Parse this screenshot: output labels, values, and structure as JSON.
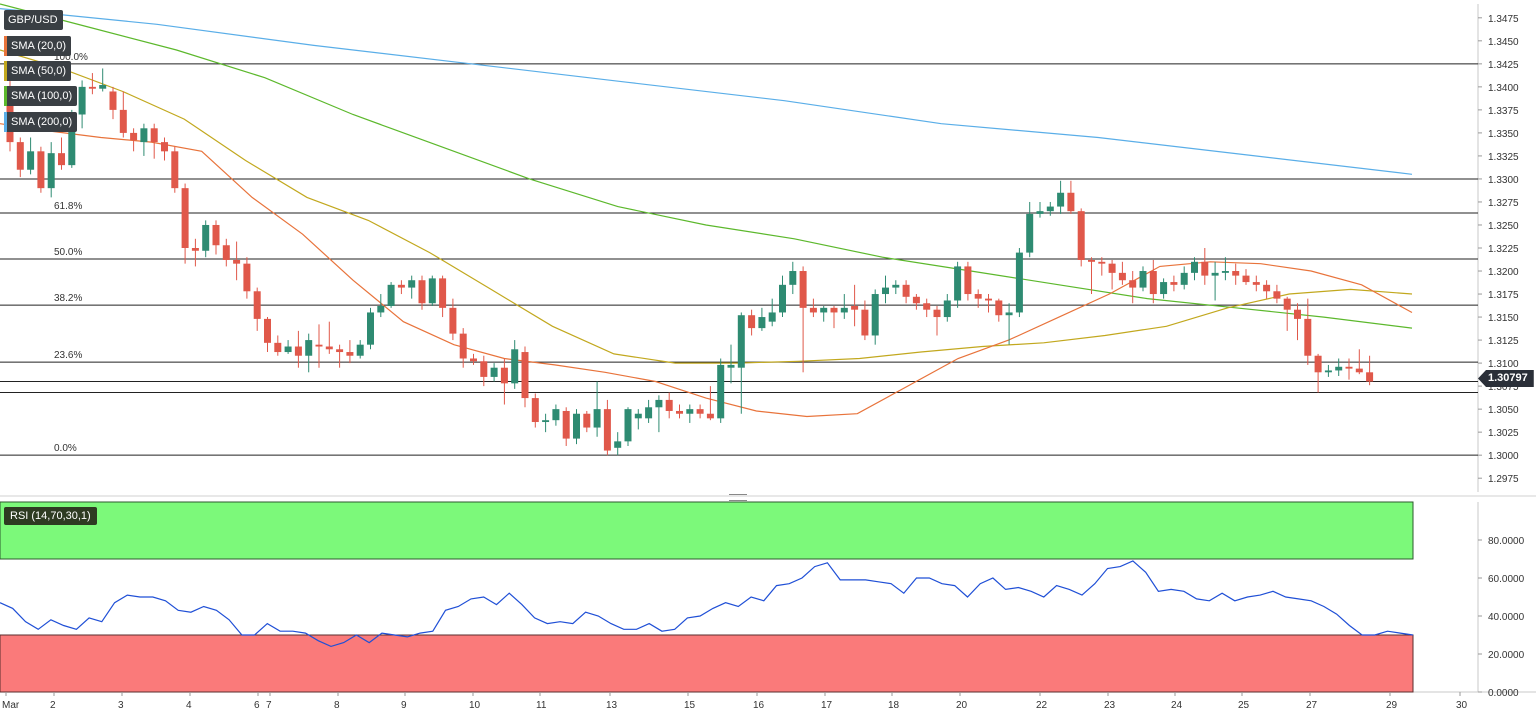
{
  "symbol": "GBP/USD",
  "current_price": "1.30797",
  "legends": [
    {
      "label": "SMA (20,0)",
      "color": "#e8733b"
    },
    {
      "label": "SMA (50,0)",
      "color": "#c2a81e"
    },
    {
      "label": "SMA (100,0)",
      "color": "#5cb82c"
    },
    {
      "label": "SMA (200,0)",
      "color": "#5aaee8"
    }
  ],
  "rsi_label": "RSI (14,70,30,1)",
  "colors": {
    "bull": "#2e8b72",
    "bear": "#e0584a",
    "rsi_line": "#1f4fd6",
    "overbought": "#7cf97a",
    "oversold": "#fa7a7a"
  },
  "chart_data": [
    {
      "type": "candlestick",
      "title": "GBP/USD",
      "ylim": [
        1.296,
        1.349
      ],
      "y_ticks": [
        "1.2975",
        "1.3000",
        "1.3025",
        "1.3050",
        "1.3075",
        "1.3100",
        "1.3125",
        "1.3150",
        "1.3175",
        "1.3200",
        "1.3225",
        "1.3250",
        "1.3275",
        "1.3300",
        "1.3325",
        "1.3350",
        "1.3375",
        "1.3400",
        "1.3425",
        "1.3450",
        "1.3475"
      ],
      "x_labels": [
        "Mar",
        "2",
        "3",
        "4",
        "6",
        "7",
        "8",
        "9",
        "10",
        "11",
        "13",
        "15",
        "16",
        "17",
        "18",
        "20",
        "22",
        "23",
        "24",
        "25",
        "27",
        "29",
        "30"
      ],
      "fibonacci": [
        {
          "label": "100.0%",
          "level": 1.3425
        },
        {
          "label": "61.8%",
          "level": 1.3263
        },
        {
          "label": "50.0%",
          "level": 1.3213
        },
        {
          "label": "38.2%",
          "level": 1.3163
        },
        {
          "label": "23.6%",
          "level": 1.3101
        },
        {
          "label": "0.0%",
          "level": 1.3
        }
      ],
      "horizontal_lines": [
        1.33,
        1.308,
        1.3068
      ],
      "candles": [
        {
          "o": 1.3385,
          "h": 1.342,
          "l": 1.333,
          "c": 1.334
        },
        {
          "o": 1.334,
          "h": 1.3345,
          "l": 1.3302,
          "c": 1.331
        },
        {
          "o": 1.331,
          "h": 1.3345,
          "l": 1.3305,
          "c": 1.333
        },
        {
          "o": 1.333,
          "h": 1.3335,
          "l": 1.3285,
          "c": 1.329
        },
        {
          "o": 1.329,
          "h": 1.334,
          "l": 1.328,
          "c": 1.3328
        },
        {
          "o": 1.3328,
          "h": 1.3345,
          "l": 1.331,
          "c": 1.3315
        },
        {
          "o": 1.3315,
          "h": 1.3375,
          "l": 1.3312,
          "c": 1.337
        },
        {
          "o": 1.337,
          "h": 1.3407,
          "l": 1.3355,
          "c": 1.34
        },
        {
          "o": 1.34,
          "h": 1.3415,
          "l": 1.3392,
          "c": 1.3398
        },
        {
          "o": 1.3398,
          "h": 1.342,
          "l": 1.3395,
          "c": 1.3402
        },
        {
          "o": 1.3395,
          "h": 1.34,
          "l": 1.3365,
          "c": 1.3375
        },
        {
          "o": 1.3375,
          "h": 1.3395,
          "l": 1.3345,
          "c": 1.335
        },
        {
          "o": 1.335,
          "h": 1.3355,
          "l": 1.333,
          "c": 1.3342
        },
        {
          "o": 1.334,
          "h": 1.336,
          "l": 1.3325,
          "c": 1.3355
        },
        {
          "o": 1.3355,
          "h": 1.336,
          "l": 1.3322,
          "c": 1.334
        },
        {
          "o": 1.334,
          "h": 1.3345,
          "l": 1.332,
          "c": 1.333
        },
        {
          "o": 1.333,
          "h": 1.3335,
          "l": 1.3285,
          "c": 1.329
        },
        {
          "o": 1.329,
          "h": 1.3295,
          "l": 1.3208,
          "c": 1.3225
        },
        {
          "o": 1.3225,
          "h": 1.3235,
          "l": 1.3205,
          "c": 1.3222
        },
        {
          "o": 1.3222,
          "h": 1.3255,
          "l": 1.3215,
          "c": 1.325
        },
        {
          "o": 1.325,
          "h": 1.3255,
          "l": 1.3218,
          "c": 1.3228
        },
        {
          "o": 1.3228,
          "h": 1.3235,
          "l": 1.3205,
          "c": 1.3212
        },
        {
          "o": 1.3212,
          "h": 1.3232,
          "l": 1.319,
          "c": 1.3208
        },
        {
          "o": 1.3208,
          "h": 1.3215,
          "l": 1.317,
          "c": 1.3178
        },
        {
          "o": 1.3178,
          "h": 1.3182,
          "l": 1.3135,
          "c": 1.3148
        },
        {
          "o": 1.3148,
          "h": 1.315,
          "l": 1.3112,
          "c": 1.3122
        },
        {
          "o": 1.3122,
          "h": 1.313,
          "l": 1.3108,
          "c": 1.3112
        },
        {
          "o": 1.3112,
          "h": 1.3125,
          "l": 1.311,
          "c": 1.3118
        },
        {
          "o": 1.3118,
          "h": 1.3135,
          "l": 1.3095,
          "c": 1.3108
        },
        {
          "o": 1.3108,
          "h": 1.3132,
          "l": 1.309,
          "c": 1.3125
        },
        {
          "o": 1.312,
          "h": 1.3142,
          "l": 1.3095,
          "c": 1.3118
        },
        {
          "o": 1.3118,
          "h": 1.3145,
          "l": 1.311,
          "c": 1.3115
        },
        {
          "o": 1.3115,
          "h": 1.312,
          "l": 1.3095,
          "c": 1.3112
        },
        {
          "o": 1.3112,
          "h": 1.3125,
          "l": 1.31,
          "c": 1.3108
        },
        {
          "o": 1.3108,
          "h": 1.3125,
          "l": 1.3105,
          "c": 1.312
        },
        {
          "o": 1.312,
          "h": 1.316,
          "l": 1.3115,
          "c": 1.3155
        },
        {
          "o": 1.3155,
          "h": 1.3175,
          "l": 1.315,
          "c": 1.3162
        },
        {
          "o": 1.3162,
          "h": 1.3188,
          "l": 1.316,
          "c": 1.3185
        },
        {
          "o": 1.3185,
          "h": 1.319,
          "l": 1.3175,
          "c": 1.3182
        },
        {
          "o": 1.3182,
          "h": 1.3195,
          "l": 1.317,
          "c": 1.319
        },
        {
          "o": 1.319,
          "h": 1.3195,
          "l": 1.3158,
          "c": 1.3165
        },
        {
          "o": 1.3165,
          "h": 1.3195,
          "l": 1.3162,
          "c": 1.3192
        },
        {
          "o": 1.3192,
          "h": 1.3195,
          "l": 1.315,
          "c": 1.316
        },
        {
          "o": 1.316,
          "h": 1.317,
          "l": 1.3125,
          "c": 1.3132
        },
        {
          "o": 1.3132,
          "h": 1.3138,
          "l": 1.3095,
          "c": 1.3105
        },
        {
          "o": 1.3105,
          "h": 1.311,
          "l": 1.3098,
          "c": 1.3102
        },
        {
          "o": 1.3102,
          "h": 1.3108,
          "l": 1.3075,
          "c": 1.3085
        },
        {
          "o": 1.3085,
          "h": 1.31,
          "l": 1.308,
          "c": 1.3095
        },
        {
          "o": 1.3095,
          "h": 1.3105,
          "l": 1.3055,
          "c": 1.3078
        },
        {
          "o": 1.3078,
          "h": 1.3125,
          "l": 1.3072,
          "c": 1.3115
        },
        {
          "o": 1.3112,
          "h": 1.3118,
          "l": 1.3052,
          "c": 1.3062
        },
        {
          "o": 1.3062,
          "h": 1.3067,
          "l": 1.303,
          "c": 1.3036
        },
        {
          "o": 1.3036,
          "h": 1.3045,
          "l": 1.3025,
          "c": 1.3038
        },
        {
          "o": 1.3038,
          "h": 1.3055,
          "l": 1.3032,
          "c": 1.305
        },
        {
          "o": 1.3048,
          "h": 1.3052,
          "l": 1.301,
          "c": 1.3018
        },
        {
          "o": 1.3018,
          "h": 1.305,
          "l": 1.3012,
          "c": 1.3045
        },
        {
          "o": 1.3045,
          "h": 1.3048,
          "l": 1.3025,
          "c": 1.303
        },
        {
          "o": 1.303,
          "h": 1.308,
          "l": 1.302,
          "c": 1.305
        },
        {
          "o": 1.305,
          "h": 1.306,
          "l": 1.3,
          "c": 1.3005
        },
        {
          "o": 1.3008,
          "h": 1.3025,
          "l": 1.3,
          "c": 1.3015
        },
        {
          "o": 1.3015,
          "h": 1.3052,
          "l": 1.301,
          "c": 1.305
        },
        {
          "o": 1.304,
          "h": 1.305,
          "l": 1.3028,
          "c": 1.3045
        },
        {
          "o": 1.304,
          "h": 1.306,
          "l": 1.3035,
          "c": 1.3052
        },
        {
          "o": 1.3052,
          "h": 1.3065,
          "l": 1.3025,
          "c": 1.306
        },
        {
          "o": 1.306,
          "h": 1.3068,
          "l": 1.304,
          "c": 1.3048
        },
        {
          "o": 1.3048,
          "h": 1.3055,
          "l": 1.304,
          "c": 1.3045
        },
        {
          "o": 1.3045,
          "h": 1.3055,
          "l": 1.3035,
          "c": 1.305
        },
        {
          "o": 1.305,
          "h": 1.3055,
          "l": 1.304,
          "c": 1.3045
        },
        {
          "o": 1.3045,
          "h": 1.3075,
          "l": 1.3038,
          "c": 1.304
        },
        {
          "o": 1.304,
          "h": 1.3105,
          "l": 1.3035,
          "c": 1.3098
        },
        {
          "o": 1.3095,
          "h": 1.312,
          "l": 1.3078,
          "c": 1.3098
        },
        {
          "o": 1.3095,
          "h": 1.3155,
          "l": 1.3045,
          "c": 1.3152
        },
        {
          "o": 1.3152,
          "h": 1.3158,
          "l": 1.313,
          "c": 1.3138
        },
        {
          "o": 1.3138,
          "h": 1.316,
          "l": 1.3135,
          "c": 1.315
        },
        {
          "o": 1.3145,
          "h": 1.317,
          "l": 1.314,
          "c": 1.3155
        },
        {
          "o": 1.3155,
          "h": 1.3195,
          "l": 1.315,
          "c": 1.3185
        },
        {
          "o": 1.3185,
          "h": 1.321,
          "l": 1.3175,
          "c": 1.32
        },
        {
          "o": 1.32,
          "h": 1.3205,
          "l": 1.309,
          "c": 1.316
        },
        {
          "o": 1.316,
          "h": 1.317,
          "l": 1.315,
          "c": 1.3155
        },
        {
          "o": 1.3155,
          "h": 1.3162,
          "l": 1.3145,
          "c": 1.316
        },
        {
          "o": 1.316,
          "h": 1.3162,
          "l": 1.3138,
          "c": 1.3155
        },
        {
          "o": 1.3155,
          "h": 1.3175,
          "l": 1.3148,
          "c": 1.316
        },
        {
          "o": 1.3162,
          "h": 1.3185,
          "l": 1.314,
          "c": 1.3158
        },
        {
          "o": 1.3158,
          "h": 1.3168,
          "l": 1.3125,
          "c": 1.313
        },
        {
          "o": 1.313,
          "h": 1.318,
          "l": 1.312,
          "c": 1.3175
        },
        {
          "o": 1.3175,
          "h": 1.3195,
          "l": 1.3165,
          "c": 1.3182
        },
        {
          "o": 1.3182,
          "h": 1.319,
          "l": 1.3175,
          "c": 1.3185
        },
        {
          "o": 1.3185,
          "h": 1.319,
          "l": 1.3165,
          "c": 1.3172
        },
        {
          "o": 1.3172,
          "h": 1.3175,
          "l": 1.3158,
          "c": 1.3165
        },
        {
          "o": 1.3165,
          "h": 1.317,
          "l": 1.315,
          "c": 1.3158
        },
        {
          "o": 1.3158,
          "h": 1.3162,
          "l": 1.313,
          "c": 1.315
        },
        {
          "o": 1.315,
          "h": 1.3175,
          "l": 1.3145,
          "c": 1.3168
        },
        {
          "o": 1.3168,
          "h": 1.321,
          "l": 1.316,
          "c": 1.3205
        },
        {
          "o": 1.3205,
          "h": 1.321,
          "l": 1.3168,
          "c": 1.3175
        },
        {
          "o": 1.3175,
          "h": 1.318,
          "l": 1.316,
          "c": 1.317
        },
        {
          "o": 1.317,
          "h": 1.3175,
          "l": 1.3155,
          "c": 1.3168
        },
        {
          "o": 1.3168,
          "h": 1.317,
          "l": 1.3145,
          "c": 1.3152
        },
        {
          "o": 1.3152,
          "h": 1.3165,
          "l": 1.312,
          "c": 1.3155
        },
        {
          "o": 1.3155,
          "h": 1.3225,
          "l": 1.315,
          "c": 1.322
        },
        {
          "o": 1.322,
          "h": 1.3275,
          "l": 1.3215,
          "c": 1.3262
        },
        {
          "o": 1.3262,
          "h": 1.3275,
          "l": 1.3258,
          "c": 1.3265
        },
        {
          "o": 1.3265,
          "h": 1.3275,
          "l": 1.326,
          "c": 1.327
        },
        {
          "o": 1.327,
          "h": 1.3298,
          "l": 1.3262,
          "c": 1.3285
        },
        {
          "o": 1.3285,
          "h": 1.3298,
          "l": 1.3262,
          "c": 1.3265
        },
        {
          "o": 1.3265,
          "h": 1.3268,
          "l": 1.3205,
          "c": 1.3212
        },
        {
          "o": 1.3212,
          "h": 1.3215,
          "l": 1.3175,
          "c": 1.321
        },
        {
          "o": 1.321,
          "h": 1.3215,
          "l": 1.3195,
          "c": 1.3208
        },
        {
          "o": 1.3208,
          "h": 1.3212,
          "l": 1.318,
          "c": 1.3198
        },
        {
          "o": 1.3198,
          "h": 1.321,
          "l": 1.3185,
          "c": 1.319
        },
        {
          "o": 1.319,
          "h": 1.32,
          "l": 1.3165,
          "c": 1.3182
        },
        {
          "o": 1.3182,
          "h": 1.3205,
          "l": 1.3178,
          "c": 1.32
        },
        {
          "o": 1.32,
          "h": 1.3212,
          "l": 1.3165,
          "c": 1.3175
        },
        {
          "o": 1.3175,
          "h": 1.3192,
          "l": 1.317,
          "c": 1.3188
        },
        {
          "o": 1.3188,
          "h": 1.3195,
          "l": 1.3178,
          "c": 1.3185
        },
        {
          "o": 1.3185,
          "h": 1.3205,
          "l": 1.318,
          "c": 1.3198
        },
        {
          "o": 1.3198,
          "h": 1.3215,
          "l": 1.319,
          "c": 1.321
        },
        {
          "o": 1.321,
          "h": 1.3225,
          "l": 1.3185,
          "c": 1.3195
        },
        {
          "o": 1.3195,
          "h": 1.321,
          "l": 1.3168,
          "c": 1.3198
        },
        {
          "o": 1.3198,
          "h": 1.3215,
          "l": 1.319,
          "c": 1.32
        },
        {
          "o": 1.32,
          "h": 1.3208,
          "l": 1.3185,
          "c": 1.3195
        },
        {
          "o": 1.3195,
          "h": 1.3202,
          "l": 1.3185,
          "c": 1.3188
        },
        {
          "o": 1.3188,
          "h": 1.3195,
          "l": 1.3178,
          "c": 1.3185
        },
        {
          "o": 1.3185,
          "h": 1.319,
          "l": 1.317,
          "c": 1.3178
        },
        {
          "o": 1.3178,
          "h": 1.3185,
          "l": 1.3165,
          "c": 1.317
        },
        {
          "o": 1.317,
          "h": 1.3172,
          "l": 1.3135,
          "c": 1.3158
        },
        {
          "o": 1.3158,
          "h": 1.3165,
          "l": 1.3125,
          "c": 1.3148
        },
        {
          "o": 1.3148,
          "h": 1.317,
          "l": 1.3098,
          "c": 1.3108
        },
        {
          "o": 1.3108,
          "h": 1.311,
          "l": 1.3068,
          "c": 1.309
        },
        {
          "o": 1.309,
          "h": 1.3098,
          "l": 1.3085,
          "c": 1.3092
        },
        {
          "o": 1.3092,
          "h": 1.3105,
          "l": 1.3086,
          "c": 1.3096
        },
        {
          "o": 1.3096,
          "h": 1.3105,
          "l": 1.3082,
          "c": 1.3094
        },
        {
          "o": 1.3094,
          "h": 1.3115,
          "l": 1.3088,
          "c": 1.309
        },
        {
          "o": 1.309,
          "h": 1.3108,
          "l": 1.3076,
          "c": 1.308
        }
      ],
      "sma20": [
        1.336,
        1.3352,
        1.3345,
        1.334,
        1.333,
        1.328,
        1.324,
        1.319,
        1.3145,
        1.312,
        1.3105,
        1.3098,
        1.309,
        1.308,
        1.3062,
        1.3048,
        1.3042,
        1.3045,
        1.3075,
        1.3105,
        1.3125,
        1.315,
        1.3175,
        1.3205,
        1.321,
        1.3208,
        1.32,
        1.3185,
        1.3155
      ],
      "sma50": [
        1.344,
        1.342,
        1.3395,
        1.3365,
        1.332,
        1.328,
        1.3255,
        1.322,
        1.318,
        1.314,
        1.311,
        1.31,
        1.31,
        1.3102,
        1.3105,
        1.3112,
        1.3118,
        1.3122,
        1.313,
        1.314,
        1.316,
        1.3175,
        1.318,
        1.3175
      ],
      "sma100": [
        1.349,
        1.3465,
        1.344,
        1.341,
        1.337,
        1.3335,
        1.33,
        1.327,
        1.325,
        1.3235,
        1.3215,
        1.32,
        1.3185,
        1.317,
        1.316,
        1.315,
        1.3138
      ],
      "sma200": [
        1.3485,
        1.3468,
        1.3445,
        1.3425,
        1.3405,
        1.3385,
        1.336,
        1.3345,
        1.3325,
        1.3305
      ],
      "rsi": {
        "ylim": [
          0,
          100
        ],
        "y_ticks": [
          "0.0000",
          "20.0000",
          "40.0000",
          "60.0000",
          "80.0000"
        ],
        "overbought": 70,
        "oversold": 30,
        "values": [
          47,
          44,
          37,
          33,
          38,
          35,
          33,
          39,
          37,
          47,
          51,
          50,
          50,
          48,
          43,
          42,
          45,
          43,
          38,
          30,
          30,
          36,
          32,
          32,
          31,
          27,
          24,
          26,
          30,
          26,
          31,
          30,
          29,
          31,
          32,
          43,
          45,
          49,
          50,
          46,
          52,
          46,
          39,
          36,
          37,
          36,
          42,
          40,
          36,
          33,
          33,
          36,
          32,
          33,
          39,
          40,
          44,
          47,
          45,
          50,
          48,
          56,
          57,
          60,
          66,
          68,
          59,
          59,
          59,
          58,
          57,
          52,
          60,
          60,
          57,
          56,
          50,
          57,
          60,
          54,
          55,
          53,
          50,
          56,
          54,
          51,
          57,
          65,
          66,
          69,
          63,
          53,
          54,
          53,
          49,
          48,
          52,
          48,
          50,
          51,
          53,
          50,
          49,
          48,
          45,
          41,
          35,
          30,
          30,
          32,
          31,
          30
        ]
      }
    }
  ]
}
